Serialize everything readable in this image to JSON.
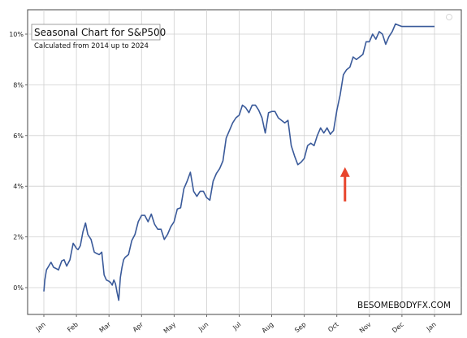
{
  "chart_data": {
    "type": "line",
    "title": "Seasonal Chart for S&P500",
    "subtitle": "Calculated from 2014 up to 2024",
    "watermark": "BESOMEBODYFX.COM",
    "xlabel": "",
    "ylabel": "",
    "x_ticks": [
      "Jan",
      "Feb",
      "Mar",
      "Apr",
      "May",
      "Jun",
      "Jul",
      "Aug",
      "Sep",
      "Oct",
      "Nov",
      "Dec",
      "Jan"
    ],
    "y_ticks": [
      "0%",
      "2%",
      "4%",
      "6%",
      "8%",
      "10%"
    ],
    "ylim": [
      -1.0,
      11.0
    ],
    "grid": true,
    "line_color": "#3a5a9a",
    "arrow_color": "#e8452c",
    "series": [
      {
        "x": [
          0,
          0.03,
          0.08,
          0.15,
          0.22,
          0.3,
          0.38,
          0.45,
          0.55,
          0.62,
          0.7,
          0.8,
          0.9,
          1.0,
          1.05,
          1.12,
          1.2,
          1.28,
          1.35,
          1.45,
          1.5,
          1.55,
          1.62,
          1.7,
          1.78,
          1.85,
          1.92,
          2.0,
          2.05,
          2.1,
          2.15,
          2.2,
          2.25,
          2.3,
          2.35,
          2.4,
          2.45,
          2.5,
          2.6,
          2.7,
          2.8,
          2.9,
          3.0,
          3.1,
          3.2,
          3.3,
          3.4,
          3.5,
          3.6,
          3.7,
          3.8,
          3.9,
          4.0,
          4.1,
          4.2,
          4.3,
          4.4,
          4.5,
          4.6,
          4.7,
          4.8,
          4.9,
          5.0,
          5.1,
          5.2,
          5.3,
          5.4,
          5.5,
          5.6,
          5.7,
          5.8,
          5.9,
          6.0,
          6.1,
          6.2,
          6.3,
          6.4,
          6.5,
          6.6,
          6.7,
          6.8,
          6.9,
          7.0,
          7.1,
          7.2,
          7.3,
          7.4,
          7.5,
          7.6,
          7.7,
          7.8,
          7.9,
          8.0,
          8.1,
          8.2,
          8.3,
          8.4,
          8.5,
          8.6,
          8.7,
          8.8,
          8.9,
          9.0,
          9.1,
          9.2,
          9.3,
          9.4,
          9.5,
          9.6,
          9.7,
          9.8,
          9.9,
          10.0,
          10.1,
          10.2,
          10.3,
          10.4,
          10.5,
          10.6,
          10.7,
          10.8,
          10.9,
          11.0,
          11.1,
          11.2,
          11.3,
          11.4,
          11.5,
          11.6,
          11.7,
          11.8,
          11.9,
          12.0
        ],
        "y": [
          -0.15,
          0.3,
          0.7,
          0.85,
          1.0,
          0.8,
          0.75,
          0.7,
          1.05,
          1.1,
          0.85,
          1.1,
          1.75,
          1.55,
          1.5,
          1.65,
          2.2,
          2.55,
          2.1,
          1.9,
          1.65,
          1.4,
          1.35,
          1.3,
          1.4,
          0.5,
          0.3,
          0.25,
          0.2,
          0.1,
          0.3,
          0.15,
          -0.2,
          -0.5,
          0.4,
          0.8,
          1.1,
          1.2,
          1.3,
          1.85,
          2.1,
          2.6,
          2.85,
          2.85,
          2.6,
          2.9,
          2.5,
          2.3,
          2.3,
          1.9,
          2.1,
          2.4,
          2.6,
          3.1,
          3.15,
          3.9,
          4.2,
          4.55,
          3.8,
          3.6,
          3.8,
          3.8,
          3.55,
          3.45,
          4.2,
          4.5,
          4.7,
          5.0,
          5.9,
          6.2,
          6.5,
          6.7,
          6.8,
          7.2,
          7.1,
          6.9,
          7.2,
          7.2,
          7.0,
          6.7,
          6.1,
          6.9,
          6.95,
          6.95,
          6.7,
          6.6,
          6.5,
          6.6,
          5.6,
          5.2,
          4.85,
          4.95,
          5.1,
          5.6,
          5.7,
          5.6,
          6.0,
          6.3,
          6.1,
          6.3,
          6.05,
          6.2,
          7.0,
          7.6,
          8.4,
          8.6,
          8.7,
          9.1,
          9.0,
          9.1,
          9.2,
          9.7,
          9.7,
          10.0,
          9.8,
          10.1,
          10.0,
          9.6,
          9.9,
          10.1,
          10.4,
          10.35,
          10.3,
          10.3,
          10.3,
          10.3,
          10.3,
          10.3,
          10.3,
          10.3,
          10.3,
          10.3,
          10.3
        ]
      }
    ],
    "annotation": {
      "type": "arrow",
      "x": 9.25,
      "y_from": 3.4,
      "y_to": 4.75,
      "color": "#e8452c"
    }
  }
}
